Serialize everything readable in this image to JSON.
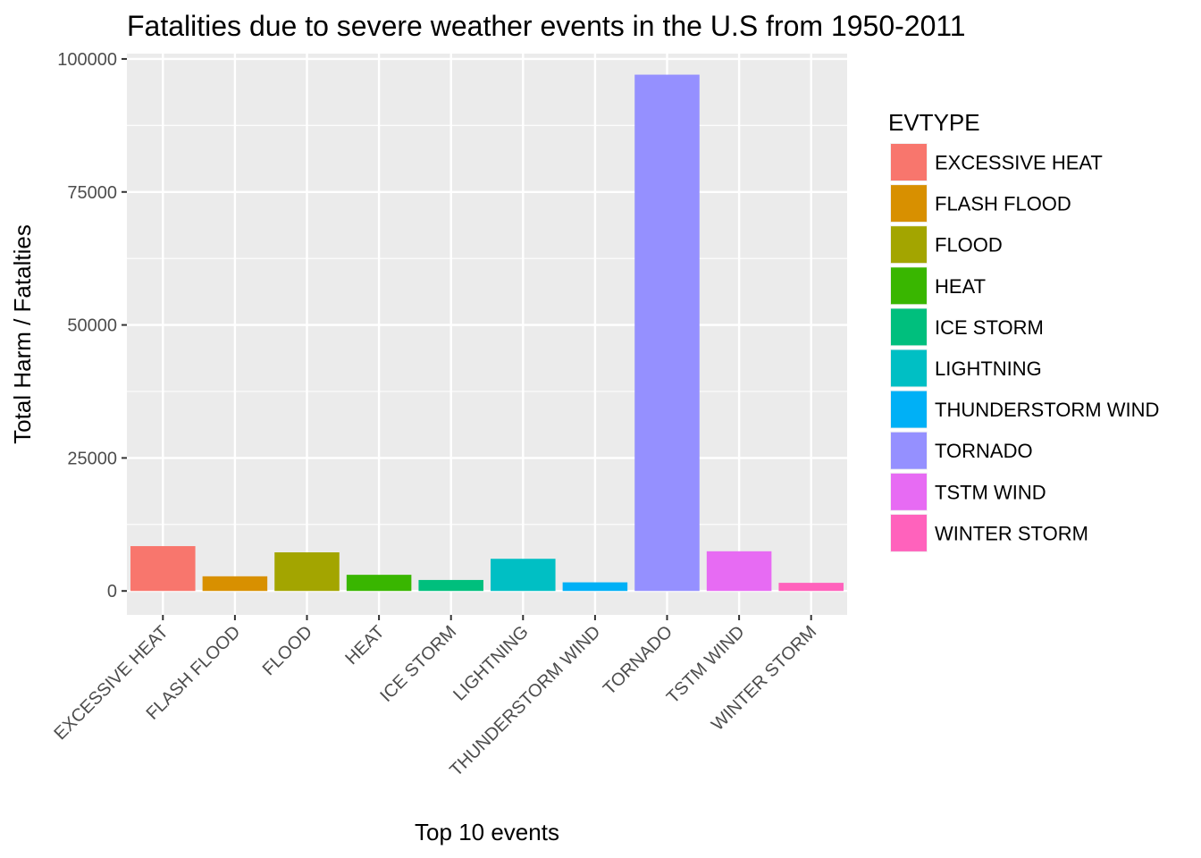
{
  "chart_data": {
    "type": "bar",
    "title": "Fatalities due to severe weather events in the U.S from 1950-2011",
    "xlabel": "Top 10 events",
    "ylabel": "Total Harm / Fatalties",
    "ylim": [
      -4500,
      101000
    ],
    "yticks": [
      0,
      25000,
      50000,
      75000,
      100000
    ],
    "grid": true,
    "legend": {
      "title": "EVTYPE",
      "placement": "right"
    },
    "categories": [
      "EXCESSIVE HEAT",
      "FLASH FLOOD",
      "FLOOD",
      "HEAT",
      "ICE STORM",
      "LIGHTNING",
      "THUNDERSTORM WIND",
      "TORNADO",
      "TSTM WIND",
      "WINTER STORM"
    ],
    "values": [
      8428,
      2755,
      7259,
      3037,
      2064,
      6046,
      1621,
      97043,
      7461,
      1527
    ],
    "colors": [
      "#F8766D",
      "#D89000",
      "#A3A500",
      "#39B600",
      "#00BF7D",
      "#00BFC4",
      "#00B0F6",
      "#9590FF",
      "#E76BF3",
      "#FF62BC"
    ]
  }
}
